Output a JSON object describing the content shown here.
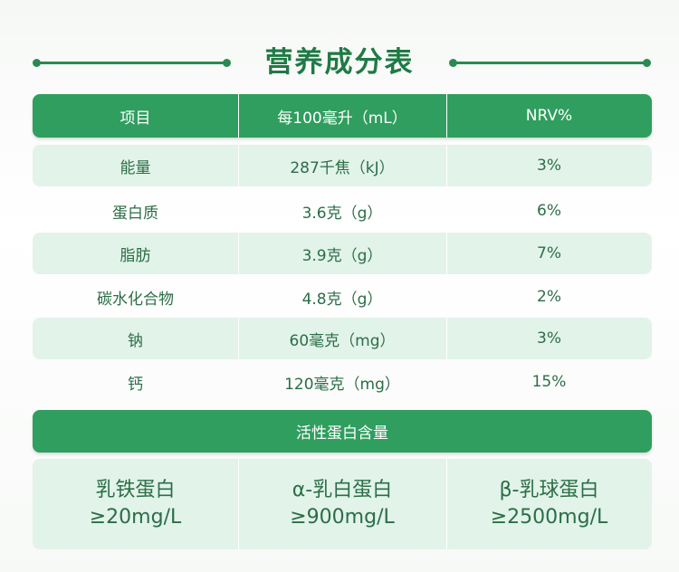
{
  "title": "营养成分表",
  "table": {
    "header": [
      "项目",
      "每100毫升（mL）",
      "NRV%"
    ],
    "rows": [
      [
        "能量",
        "287千焦（kJ）",
        "3%"
      ],
      [
        "蛋白质",
        "3.6克（g）",
        "6%"
      ],
      [
        "脂肪",
        "3.9克（g）",
        "7%"
      ],
      [
        "碳水化合物",
        "4.8克（g）",
        "2%"
      ],
      [
        "钠",
        "60毫克（mg）",
        "3%"
      ],
      [
        "钙",
        "120毫克（mg）",
        "15%"
      ]
    ]
  },
  "active_protein": {
    "title": "活性蛋白含量",
    "items": [
      [
        "乳铁蛋白",
        "≥20mg/L"
      ],
      [
        "α-乳白蛋白",
        "≥900mg/L"
      ],
      [
        "β-乳球蛋白",
        "≥2500mg/L"
      ]
    ]
  }
}
